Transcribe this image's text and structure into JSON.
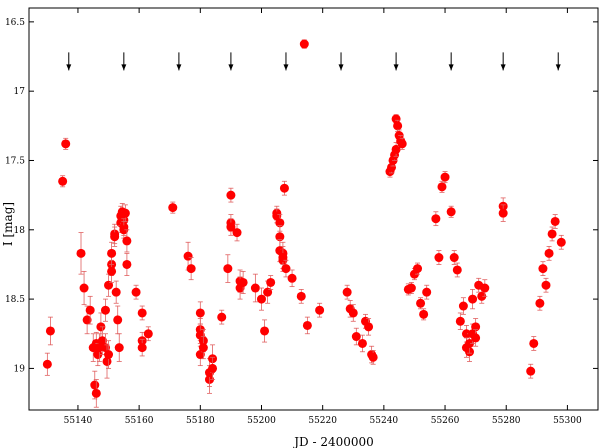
{
  "chart_data": {
    "type": "scatter",
    "title": "",
    "xlabel": "JD - 2400000",
    "ylabel": "I [mag]",
    "xlim": [
      55124,
      55310
    ],
    "ylim": [
      19.3,
      16.4
    ],
    "y_inverted": true,
    "grid": false,
    "legend": "none",
    "x_ticks": [
      55140,
      55160,
      55180,
      55200,
      55220,
      55240,
      55260,
      55280,
      55300
    ],
    "y_ticks": [
      16.5,
      17,
      17.5,
      18,
      18.5,
      19
    ],
    "x_tick_labels": [
      "55140",
      "55160",
      "55180",
      "55200",
      "55220",
      "55240",
      "55260",
      "55280",
      "55300"
    ],
    "y_tick_labels": [
      "16.5",
      "17",
      "17.5",
      "18",
      "18.5",
      "19"
    ],
    "arrow_markers": {
      "y": 16.85,
      "x": [
        55137,
        55155,
        55173,
        55190,
        55208,
        55226,
        55244,
        55262,
        55279,
        55297
      ]
    },
    "colors": {
      "points": "#ff0000",
      "errorbars": "#e06060",
      "axes": "#000000",
      "arrows": "#000000"
    },
    "series": [
      {
        "points": [
          [
            55130,
            18.97,
            0.08
          ],
          [
            55131,
            18.73,
            0.1
          ],
          [
            55135,
            17.65,
            0.04
          ],
          [
            55136,
            17.38,
            0.04
          ],
          [
            55141,
            18.17,
            0.15
          ],
          [
            55142,
            18.42,
            0.12
          ],
          [
            55143,
            18.65,
            0.1
          ],
          [
            55144,
            18.58,
            0.1
          ],
          [
            55145,
            18.85,
            0.1
          ],
          [
            55145.5,
            19.12,
            0.1
          ],
          [
            55146,
            19.18,
            0.1
          ],
          [
            55146,
            18.82,
            0.08
          ],
          [
            55146.5,
            18.9,
            0.08
          ],
          [
            55147,
            18.85,
            0.1
          ],
          [
            55147.5,
            18.7,
            0.1
          ],
          [
            55148,
            18.8,
            0.1
          ],
          [
            55149,
            18.58,
            0.08
          ],
          [
            55149,
            18.85,
            0.1
          ],
          [
            55149.5,
            18.95,
            0.12
          ],
          [
            55150,
            18.9,
            0.1
          ],
          [
            55150,
            18.4,
            0.08
          ],
          [
            55151,
            18.25,
            0.08
          ],
          [
            55151,
            18.3,
            0.08
          ],
          [
            55151,
            18.17,
            0.08
          ],
          [
            55152,
            18.03,
            0.07
          ],
          [
            55152,
            18.05,
            0.07
          ],
          [
            55152.5,
            18.45,
            0.08
          ],
          [
            55153,
            18.65,
            0.1
          ],
          [
            55153.5,
            18.85,
            0.1
          ],
          [
            55154,
            17.95,
            0.07
          ],
          [
            55154,
            17.9,
            0.07
          ],
          [
            55154.5,
            17.87,
            0.06
          ],
          [
            55155,
            17.93,
            0.06
          ],
          [
            55155,
            17.98,
            0.06
          ],
          [
            55155,
            18.0,
            0.06
          ],
          [
            55155.5,
            17.88,
            0.06
          ],
          [
            55156,
            18.08,
            0.08
          ],
          [
            55156,
            18.25,
            0.08
          ],
          [
            55159,
            18.45,
            0.05
          ],
          [
            55161,
            18.6,
            0.05
          ],
          [
            55161,
            18.8,
            0.06
          ],
          [
            55161,
            18.85,
            0.06
          ],
          [
            55163,
            18.75,
            0.05
          ],
          [
            55171,
            17.84,
            0.04
          ],
          [
            55176,
            18.19,
            0.1
          ],
          [
            55177,
            18.28,
            0.08
          ],
          [
            55180,
            18.6,
            0.08
          ],
          [
            55180,
            18.72,
            0.08
          ],
          [
            55180,
            18.76,
            0.08
          ],
          [
            55180,
            18.9,
            0.08
          ],
          [
            55181,
            18.8,
            0.08
          ],
          [
            55181,
            18.85,
            0.08
          ],
          [
            55183,
            19.08,
            0.1
          ],
          [
            55183,
            19.03,
            0.1
          ],
          [
            55184,
            18.93,
            0.1
          ],
          [
            55184,
            19.0,
            0.08
          ],
          [
            55187,
            18.63,
            0.05
          ],
          [
            55189,
            18.28,
            0.1
          ],
          [
            55190,
            17.75,
            0.05
          ],
          [
            55190,
            17.95,
            0.06
          ],
          [
            55190,
            17.98,
            0.06
          ],
          [
            55192,
            18.02,
            0.06
          ],
          [
            55193,
            18.37,
            0.08
          ],
          [
            55193,
            18.42,
            0.08
          ],
          [
            55194,
            18.38,
            0.08
          ],
          [
            55198,
            18.42,
            0.1
          ],
          [
            55200,
            18.5,
            0.08
          ],
          [
            55201,
            18.73,
            0.08
          ],
          [
            55202,
            18.45,
            0.08
          ],
          [
            55203,
            18.38,
            0.05
          ],
          [
            55205,
            17.88,
            0.05
          ],
          [
            55205,
            17.9,
            0.05
          ],
          [
            55206,
            17.95,
            0.06
          ],
          [
            55206,
            18.05,
            0.08
          ],
          [
            55206,
            18.15,
            0.08
          ],
          [
            55207,
            18.22,
            0.08
          ],
          [
            55207,
            18.17,
            0.08
          ],
          [
            55207,
            18.2,
            0.08
          ],
          [
            55207.5,
            17.7,
            0.05
          ],
          [
            55208,
            18.28,
            0.06
          ],
          [
            55210,
            18.35,
            0.06
          ],
          [
            55213,
            18.48,
            0.05
          ],
          [
            55214,
            16.66,
            0.03
          ],
          [
            55215,
            18.69,
            0.06
          ],
          [
            55219,
            18.58,
            0.05
          ],
          [
            55228,
            18.45,
            0.05
          ],
          [
            55229,
            18.57,
            0.06
          ],
          [
            55230,
            18.6,
            0.06
          ],
          [
            55231,
            18.77,
            0.06
          ],
          [
            55233,
            18.82,
            0.06
          ],
          [
            55234,
            18.66,
            0.05
          ],
          [
            55235,
            18.7,
            0.06
          ],
          [
            55236,
            18.9,
            0.06
          ],
          [
            55236.5,
            18.92,
            0.05
          ],
          [
            55242,
            17.58,
            0.04
          ],
          [
            55242.5,
            17.55,
            0.04
          ],
          [
            55243,
            17.5,
            0.04
          ],
          [
            55243.5,
            17.46,
            0.04
          ],
          [
            55244,
            17.42,
            0.05
          ],
          [
            55244,
            17.2,
            0.03
          ],
          [
            55244.5,
            17.25,
            0.04
          ],
          [
            55245,
            17.32,
            0.04
          ],
          [
            55245.5,
            17.36,
            0.04
          ],
          [
            55246,
            17.38,
            0.04
          ],
          [
            55248,
            18.43,
            0.04
          ],
          [
            55249,
            18.42,
            0.04
          ],
          [
            55250,
            18.32,
            0.04
          ],
          [
            55251,
            18.28,
            0.04
          ],
          [
            55252,
            18.53,
            0.04
          ],
          [
            55253,
            18.61,
            0.04
          ],
          [
            55254,
            18.45,
            0.05
          ],
          [
            55257,
            17.92,
            0.05
          ],
          [
            55258,
            18.2,
            0.05
          ],
          [
            55259,
            17.69,
            0.04
          ],
          [
            55260,
            17.62,
            0.04
          ],
          [
            55262,
            17.87,
            0.04
          ],
          [
            55263,
            18.2,
            0.05
          ],
          [
            55264,
            18.29,
            0.05
          ],
          [
            55265,
            18.66,
            0.06
          ],
          [
            55266,
            18.55,
            0.06
          ],
          [
            55267,
            18.75,
            0.06
          ],
          [
            55267,
            18.85,
            0.07
          ],
          [
            55268,
            18.88,
            0.07
          ],
          [
            55268,
            18.82,
            0.07
          ],
          [
            55269,
            18.5,
            0.07
          ],
          [
            55269,
            18.75,
            0.07
          ],
          [
            55270,
            18.7,
            0.06
          ],
          [
            55270,
            18.78,
            0.06
          ],
          [
            55271,
            18.4,
            0.05
          ],
          [
            55272,
            18.48,
            0.05
          ],
          [
            55273,
            18.42,
            0.06
          ],
          [
            55279,
            17.83,
            0.06
          ],
          [
            55279,
            17.88,
            0.06
          ],
          [
            55288,
            19.02,
            0.05
          ],
          [
            55289,
            18.82,
            0.05
          ],
          [
            55291,
            18.53,
            0.05
          ],
          [
            55292,
            18.28,
            0.05
          ],
          [
            55293,
            18.4,
            0.05
          ],
          [
            55294,
            18.17,
            0.05
          ],
          [
            55295,
            18.03,
            0.05
          ],
          [
            55296,
            17.94,
            0.05
          ],
          [
            55298,
            18.09,
            0.05
          ]
        ]
      }
    ]
  }
}
